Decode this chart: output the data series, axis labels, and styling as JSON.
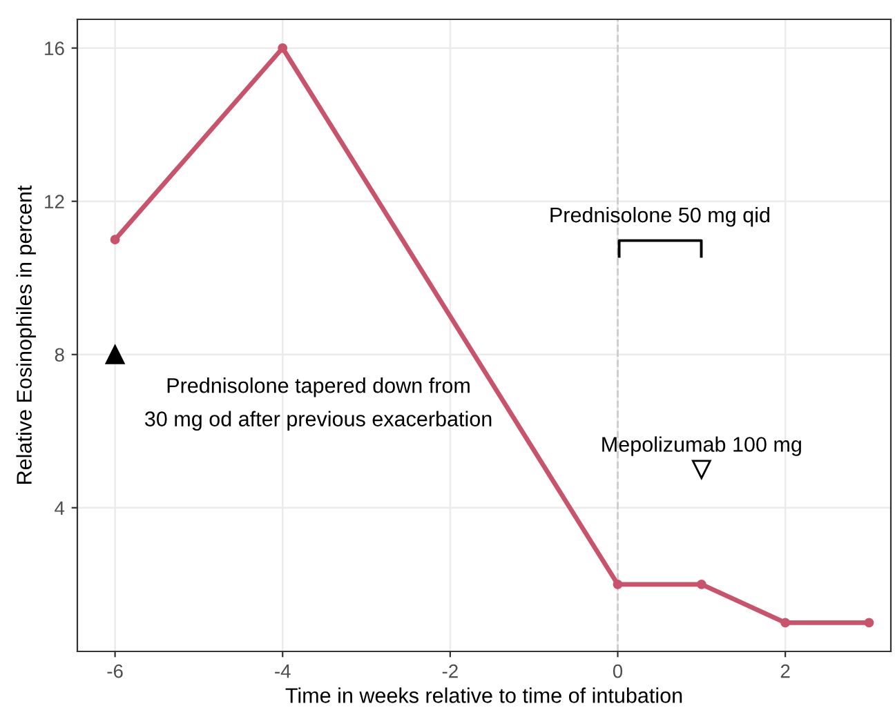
{
  "chart_data": {
    "type": "line",
    "xlabel": "Time in weeks relative to time of intubation",
    "ylabel": "Relative Eosinophiles in percent",
    "x": [
      -6,
      -4,
      0,
      1,
      2,
      3
    ],
    "series": [
      {
        "color": "#c9536b",
        "values": [
          11,
          16,
          2,
          2,
          1,
          1
        ]
      }
    ],
    "xlim": [
      -6.45,
      3.26
    ],
    "ylim": [
      0.25,
      16.75
    ],
    "xticks": [
      -6,
      -4,
      -2,
      0,
      2
    ],
    "yticks": [
      4,
      8,
      12,
      16
    ],
    "grid": true,
    "marker": "circle",
    "line_style": "solid",
    "legend": false,
    "ref_lines": [
      {
        "axis": "x",
        "value": 0,
        "color": "#cccccc",
        "line_style": "dashed"
      }
    ],
    "annotations": [
      {
        "text": "Prednisolone tapered down from\n30 mg od after previous exacerbation",
        "x": -6,
        "y": 8
      },
      {
        "text": "Mepolizumab 100 mg",
        "x": 1,
        "y": 5
      },
      "Prednisolone 50 mg qid"
    ]
  }
}
